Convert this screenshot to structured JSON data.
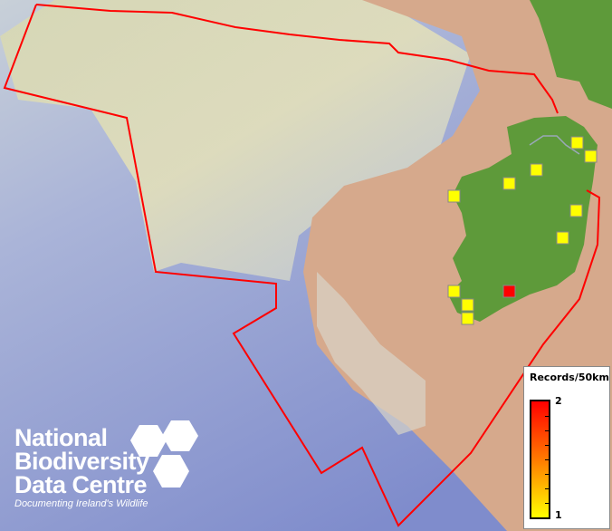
{
  "legend": {
    "title": "Records/50km",
    "max_label": "2",
    "min_label": "1",
    "color_max": "#ff0000",
    "color_min": "#ffff00"
  },
  "logo": {
    "line1": "National",
    "line2": "Biodiversity",
    "line3": "Data Centre",
    "tagline": "Documenting Ireland's Wildlife"
  },
  "colors": {
    "boundary": "#ff0000",
    "land": "#5e9a3a",
    "shelf": "#d8a888",
    "deep_sea": "#8090c8"
  },
  "records": [
    {
      "value": 1
    },
    {
      "value": 1
    },
    {
      "value": 1
    },
    {
      "value": 1
    },
    {
      "value": 1
    },
    {
      "value": 1
    },
    {
      "value": 1
    },
    {
      "value": 1
    },
    {
      "value": 1
    },
    {
      "value": 1
    },
    {
      "value": 2
    }
  ]
}
